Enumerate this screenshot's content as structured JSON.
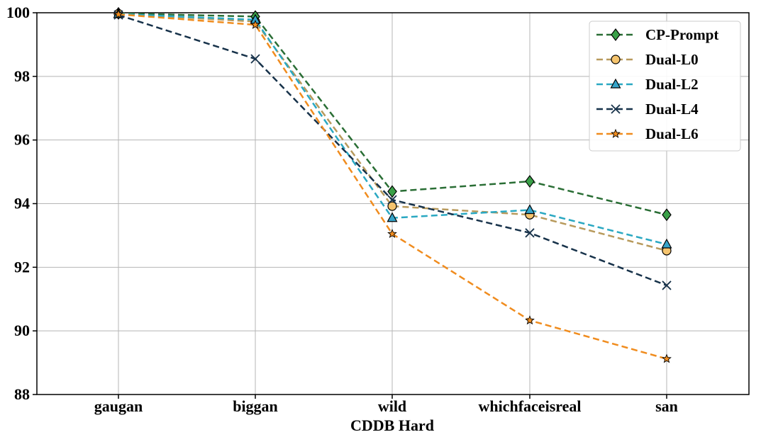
{
  "chart_data": {
    "type": "line",
    "title": "",
    "xlabel": "CDDB Hard",
    "ylabel": "",
    "categories": [
      "gaugan",
      "biggan",
      "wild",
      "whichfaceisreal",
      "san"
    ],
    "ylim": [
      88,
      100
    ],
    "yticks": [
      88,
      90,
      92,
      94,
      96,
      98,
      100
    ],
    "grid": true,
    "legend_position": "top-right",
    "series": [
      {
        "name": "CP-Prompt",
        "values": [
          99.98,
          99.88,
          94.38,
          94.7,
          93.65
        ],
        "color": "#2a6e35",
        "marker": "diamond",
        "marker_fill": "#3aa048"
      },
      {
        "name": "Dual-L0",
        "values": [
          99.97,
          99.72,
          93.92,
          93.65,
          92.52
        ],
        "color": "#b89a5c",
        "marker": "circle",
        "marker_fill": "#f5c46e"
      },
      {
        "name": "Dual-L2",
        "values": [
          99.96,
          99.78,
          93.55,
          93.8,
          92.72
        ],
        "color": "#2aa8c2",
        "marker": "triangle",
        "marker_fill": "#36a4c9"
      },
      {
        "name": "Dual-L4",
        "values": [
          99.93,
          98.55,
          94.12,
          93.08,
          91.43
        ],
        "color": "#17324a",
        "marker": "x",
        "marker_fill": "#17324a"
      },
      {
        "name": "Dual-L6",
        "values": [
          99.95,
          99.62,
          93.05,
          90.33,
          89.12
        ],
        "color": "#f08c1e",
        "marker": "star",
        "marker_fill": "#f08c1e"
      }
    ]
  }
}
